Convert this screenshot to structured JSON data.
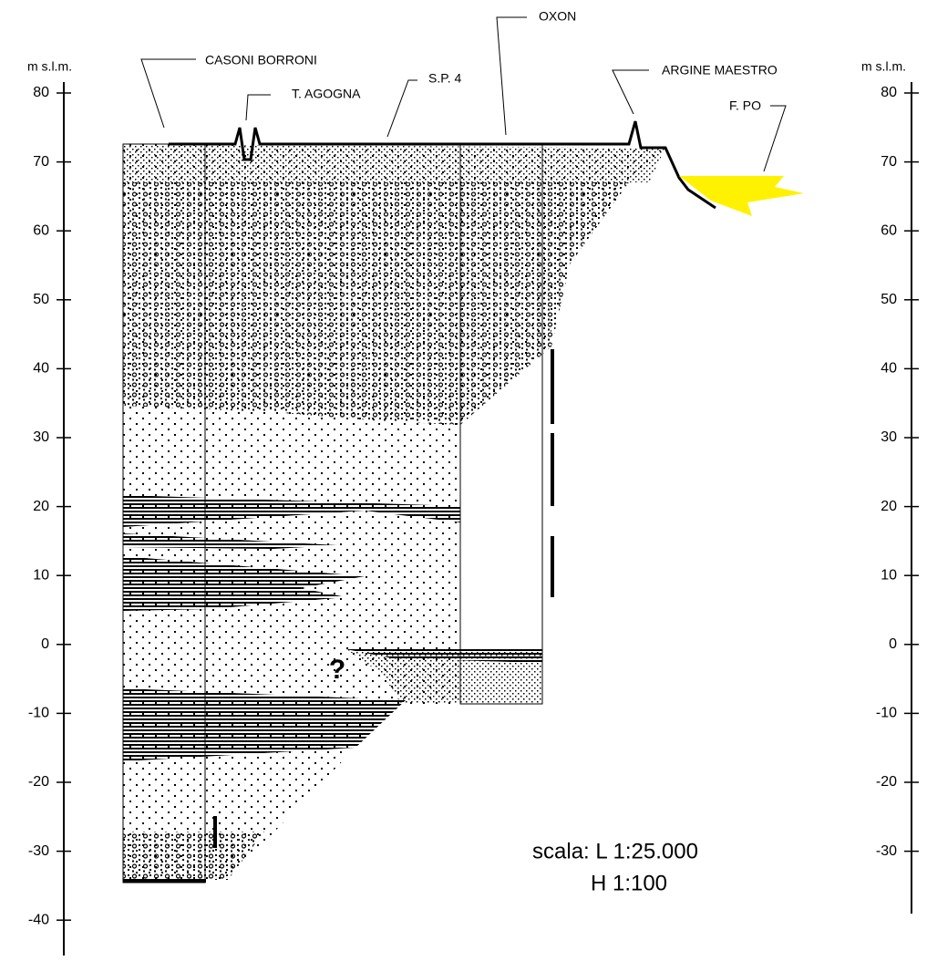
{
  "axes": {
    "unit_label": "m s.l.m.",
    "left_ticks": [
      80,
      70,
      60,
      50,
      40,
      30,
      20,
      10,
      0,
      -10,
      -20,
      -30,
      -40
    ],
    "right_ticks": [
      80,
      70,
      60,
      50,
      40,
      30,
      20,
      10,
      0,
      -10,
      -20,
      -30
    ]
  },
  "labels": {
    "casoni_borroni": "CASONI BORRONI",
    "t_agogna": "T. AGOGNA",
    "sp4": "S.P. 4",
    "oxon": "OXON",
    "argine_maestro": "ARGINE MAESTRO",
    "f_po": "F. PO",
    "question": "?"
  },
  "scale": {
    "line1": "scala: L 1:25.000",
    "line2": "H 1:100"
  }
}
